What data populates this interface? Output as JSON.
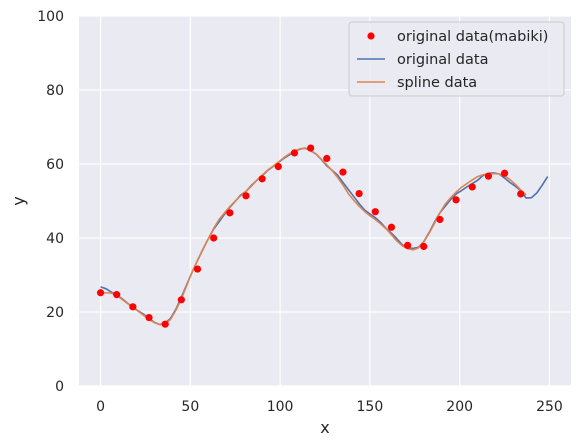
{
  "chart_data": {
    "type": "line",
    "title": "",
    "xlabel": "x",
    "ylabel": "y",
    "xlim": [
      -12,
      262
    ],
    "ylim": [
      0,
      100
    ],
    "xticks": [
      0,
      50,
      100,
      150,
      200,
      250
    ],
    "yticks": [
      0,
      20,
      40,
      60,
      80,
      100
    ],
    "grid": true,
    "legend_position": "top-right",
    "series": [
      {
        "name": "original data",
        "kind": "line",
        "color": "#4c72b0",
        "x": [
          0,
          3,
          6,
          9,
          12,
          15,
          18,
          21,
          24,
          27,
          30,
          33,
          36,
          39,
          42,
          45,
          48,
          51,
          54,
          57,
          60,
          63,
          66,
          69,
          72,
          75,
          78,
          81,
          84,
          87,
          90,
          93,
          96,
          99,
          102,
          105,
          108,
          111,
          114,
          117,
          120,
          123,
          126,
          129,
          132,
          135,
          138,
          141,
          144,
          147,
          150,
          153,
          156,
          159,
          162,
          165,
          168,
          171,
          174,
          177,
          180,
          183,
          186,
          189,
          192,
          195,
          198,
          201,
          204,
          207,
          210,
          213,
          216,
          219,
          222,
          225,
          228,
          231,
          234,
          237,
          240,
          243,
          246,
          249
        ],
        "y": [
          26.8,
          26.3,
          25.4,
          24.6,
          23.6,
          22.4,
          21.3,
          20.3,
          19.4,
          18.3,
          17.2,
          16.6,
          17.0,
          18.3,
          20.8,
          24.0,
          27.4,
          30.8,
          33.9,
          36.9,
          39.8,
          42.4,
          44.4,
          46.4,
          48.3,
          49.9,
          51.6,
          52.6,
          54.2,
          55.6,
          56.8,
          58.2,
          59.3,
          60.4,
          61.5,
          62.4,
          63.3,
          64.0,
          64.3,
          63.6,
          62.7,
          61.2,
          59.5,
          58.3,
          57.0,
          55.0,
          53.1,
          51.2,
          49.3,
          47.6,
          46.5,
          45.5,
          44.2,
          42.6,
          41.3,
          39.8,
          38.2,
          37.3,
          37.2,
          37.5,
          39.0,
          41.5,
          44.3,
          46.8,
          48.6,
          50.4,
          51.9,
          52.8,
          53.8,
          54.7,
          55.6,
          56.9,
          57.5,
          57.6,
          57.3,
          56.2,
          55.0,
          54.0,
          52.8,
          50.8,
          50.9,
          52.2,
          54.3,
          56.6
        ]
      },
      {
        "name": "spline data",
        "kind": "line",
        "color": "#dd8452",
        "x": [
          0,
          3,
          6,
          9,
          12,
          15,
          18,
          21,
          24,
          27,
          30,
          33,
          36,
          39,
          42,
          45,
          48,
          51,
          54,
          57,
          60,
          63,
          66,
          69,
          72,
          75,
          78,
          81,
          84,
          87,
          90,
          93,
          96,
          99,
          102,
          105,
          108,
          111,
          114,
          117,
          120,
          123,
          126,
          129,
          132,
          135,
          138,
          141,
          144,
          147,
          150,
          153,
          156,
          159,
          162,
          165,
          168,
          171,
          174,
          177,
          180,
          183,
          186,
          189,
          192,
          195,
          198,
          201,
          204,
          207,
          210,
          213,
          216,
          219,
          222,
          225,
          228,
          231,
          234,
          237
        ],
        "y": [
          25.0,
          25.2,
          25.1,
          24.5,
          23.4,
          22.3,
          21.2,
          20.2,
          19.1,
          18.0,
          17.1,
          16.6,
          16.7,
          18.0,
          20.5,
          23.5,
          27.2,
          30.8,
          34.0,
          37.0,
          39.8,
          42.6,
          45.0,
          46.8,
          48.5,
          50.0,
          51.4,
          52.6,
          54.0,
          55.6,
          57.0,
          58.3,
          59.4,
          60.5,
          61.7,
          62.7,
          63.5,
          64.1,
          64.2,
          63.7,
          62.7,
          61.3,
          59.8,
          58.2,
          56.4,
          54.3,
          52.0,
          50.2,
          48.6,
          47.2,
          46.0,
          45.0,
          43.8,
          42.5,
          40.9,
          39.2,
          37.9,
          37.1,
          36.8,
          37.3,
          38.9,
          41.3,
          44.0,
          46.8,
          49.2,
          50.9,
          52.4,
          53.7,
          54.7,
          55.7,
          56.6,
          57.1,
          57.3,
          57.4,
          57.3,
          56.8,
          55.8,
          54.5,
          53.0,
          51.6
        ]
      },
      {
        "name": "original data(mabiki)",
        "kind": "scatter",
        "color": "#ff0000",
        "x": [
          0,
          9,
          18,
          27,
          36,
          45,
          54,
          63,
          72,
          81,
          90,
          99,
          108,
          117,
          126,
          135,
          144,
          153,
          162,
          171,
          180,
          189,
          198,
          207,
          216,
          225,
          234
        ],
        "y": [
          25.2,
          24.7,
          21.4,
          18.5,
          16.7,
          23.3,
          31.6,
          40.0,
          46.8,
          51.4,
          56.0,
          59.3,
          63.0,
          64.3,
          61.5,
          57.8,
          52.0,
          47.1,
          42.9,
          38.0,
          37.7,
          45.0,
          50.3,
          53.8,
          56.7,
          57.5,
          51.9
        ]
      }
    ],
    "legend": [
      {
        "label": "original data(mabiki)",
        "marker": "dot",
        "color": "#ff0000"
      },
      {
        "label": "original data",
        "marker": "line",
        "color": "#4c72b0"
      },
      {
        "label": "spline data",
        "marker": "line",
        "color": "#dd8452"
      }
    ]
  }
}
